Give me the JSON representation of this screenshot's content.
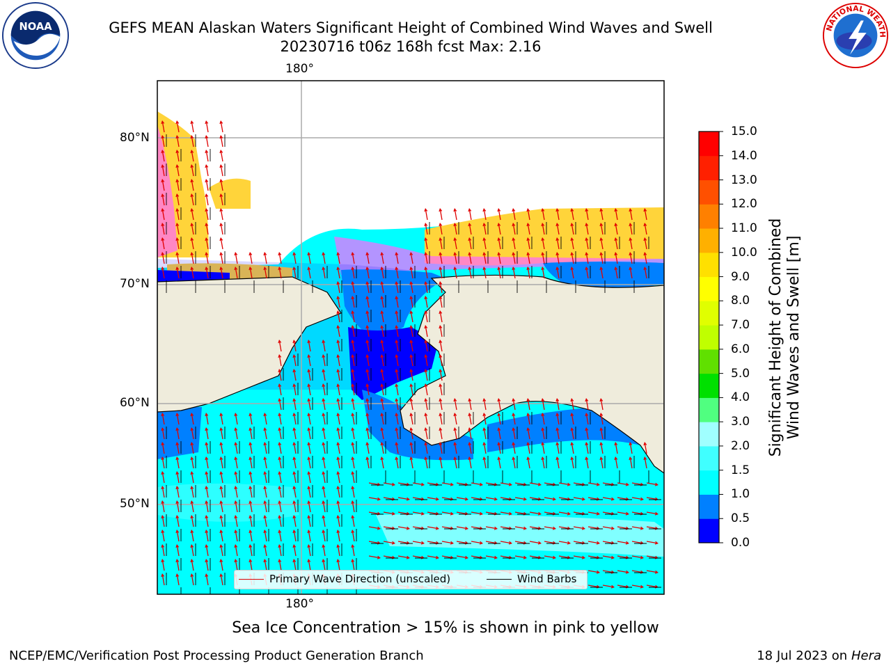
{
  "header": {
    "title_line1": "GEFS MEAN Alaskan Waters Significant Height of Combined Wind Waves and Swell",
    "title_line2": "20230716 t06z 168h fcst   Max: 2.16"
  },
  "logos": {
    "noaa_text": "NOAA",
    "nws_text": "NATIONAL WEATHER SERVICE"
  },
  "map": {
    "lon_label_top": "180°",
    "lon_label_bottom": "180°",
    "lat_labels": [
      "80°N",
      "70°N",
      "60°N",
      "50°N"
    ],
    "land_color": "#efecdc",
    "ice_colors": [
      "#ff66ff",
      "#ffcc33",
      "#ffe033"
    ]
  },
  "legend": {
    "wave_label": "Primary Wave Direction (unscaled)",
    "wind_label": "Wind Barbs",
    "wave_color": "#e00000",
    "wind_color": "#000000"
  },
  "colorbar": {
    "title_line1": "Significant Height of Combined",
    "title_line2": "Wind Waves and Swell [m]",
    "ticks": [
      "15.0",
      "14.0",
      "13.0",
      "12.0",
      "11.0",
      "10.0",
      "9.0",
      "8.0",
      "7.0",
      "6.0",
      "5.0",
      "4.0",
      "3.0",
      "2.0",
      "1.5",
      "1.0",
      "0.5",
      "0.0"
    ],
    "colors_bottom_to_top": [
      "#0000ff",
      "#0080ff",
      "#00ffff",
      "#40ffff",
      "#a0ffff",
      "#50ff80",
      "#00e000",
      "#60e000",
      "#c0ff00",
      "#e0ff00",
      "#ffff00",
      "#ffe000",
      "#ffb000",
      "#ff8000",
      "#ff5000",
      "#ff2000",
      "#ff0000"
    ]
  },
  "footer": {
    "note": "Sea Ice Concentration > 15% is shown in pink to yellow",
    "left": "NCEP/EMC/Verification Post Processing Product Generation Branch",
    "date": "18 Jul 2023 on ",
    "machine": "Hera"
  }
}
